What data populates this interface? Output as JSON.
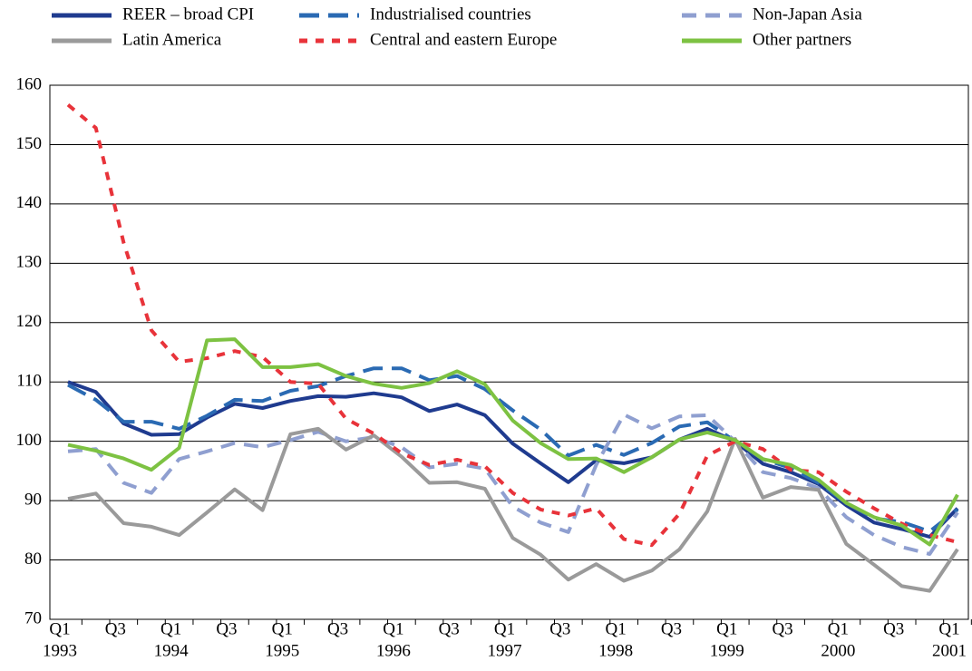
{
  "chart_data": {
    "type": "line",
    "categories": [
      "Q1",
      null,
      "Q3",
      null,
      "Q1",
      null,
      "Q3",
      null,
      "Q1",
      null,
      "Q3",
      null,
      "Q1",
      null,
      "Q3",
      null,
      "Q1",
      null,
      "Q3",
      null,
      "Q1",
      null,
      "Q3",
      null,
      "Q1",
      null,
      "Q3",
      null,
      "Q1",
      null,
      "Q3",
      null,
      "Q1"
    ],
    "category_years": [
      "1993",
      null,
      null,
      null,
      "1994",
      null,
      null,
      null,
      "1995",
      null,
      null,
      null,
      "1996",
      null,
      null,
      null,
      "1997",
      null,
      null,
      null,
      "1998",
      null,
      null,
      null,
      "1999",
      null,
      null,
      null,
      "2000",
      null,
      null,
      null,
      "2001"
    ],
    "ylim": [
      70,
      160
    ],
    "yticks": [
      70,
      80,
      90,
      100,
      110,
      120,
      130,
      140,
      150,
      160
    ],
    "grid": true,
    "series": [
      {
        "name": "REER – broad CPI",
        "color": "#1f3b8f",
        "style": "solid",
        "values": [
          110,
          108.3,
          103,
          101.1,
          101.2,
          104,
          106.3,
          105.6,
          106.8,
          107.6,
          107.5,
          108.1,
          107.4,
          105.1,
          106.2,
          104.4,
          99.6,
          96.3,
          93.1,
          96.8,
          96.3,
          97.3,
          100.3,
          102.1,
          100,
          96.2,
          94.8,
          92.8,
          89.2,
          86.3,
          85.2,
          83.9,
          88.7
        ]
      },
      {
        "name": "Industrialised countries",
        "color": "#2a6ab3",
        "style": "long",
        "values": [
          109.5,
          107,
          103.3,
          103.3,
          102.1,
          104.3,
          107,
          106.8,
          108.5,
          109.3,
          111,
          112.3,
          112.3,
          110.3,
          111,
          108.8,
          105.2,
          102,
          97.6,
          99.4,
          97.7,
          99.7,
          102.5,
          103.2,
          100,
          97,
          95.5,
          93,
          89.6,
          87,
          86.4,
          84.8,
          88.5
        ]
      },
      {
        "name": "Non-Japan Asia",
        "color": "#8f9fd0",
        "style": "dashed",
        "values": [
          98.3,
          98.7,
          93,
          91.3,
          97,
          98.3,
          99.7,
          99,
          100.2,
          101.6,
          100,
          100.7,
          99,
          95.6,
          96.2,
          95.4,
          89,
          86.3,
          84.7,
          96,
          104.5,
          102.2,
          104.2,
          104.4,
          100,
          94.8,
          93.8,
          92.1,
          87.2,
          84.2,
          82.2,
          81,
          88
        ]
      },
      {
        "name": "Latin America",
        "color": "#9a9a9a",
        "style": "solid",
        "values": [
          90.3,
          91.2,
          86.2,
          85.6,
          84.2,
          88,
          91.9,
          88.4,
          101.2,
          102.1,
          98.6,
          101,
          97.4,
          93,
          93.1,
          92,
          83.7,
          80.9,
          76.7,
          79.3,
          76.5,
          78.2,
          81.8,
          88.2,
          100.4,
          90.5,
          92.3,
          91.8,
          82.7,
          79.2,
          75.6,
          74.8,
          81.8
        ]
      },
      {
        "name": "Central and eastern Europe",
        "color": "#e8333a",
        "style": "dotted",
        "values": [
          156.7,
          152.8,
          133.5,
          118.7,
          113.4,
          114,
          115.2,
          114.2,
          110,
          109.7,
          103.8,
          101.3,
          98,
          96,
          96.9,
          95.8,
          91.3,
          88.5,
          87.5,
          88.7,
          83.5,
          82.5,
          87.8,
          97.6,
          100,
          98.7,
          95.2,
          94.8,
          91.5,
          88.7,
          86.1,
          84.2,
          83
        ]
      },
      {
        "name": "Other partners",
        "color": "#7dc242",
        "style": "solid",
        "values": [
          99.4,
          98.4,
          97.1,
          95.2,
          98.9,
          117,
          117.2,
          112.5,
          112.5,
          113,
          111,
          109.7,
          109,
          109.8,
          111.8,
          109.6,
          103.5,
          99.7,
          97,
          97.1,
          94.8,
          97.3,
          100.3,
          101.5,
          100.2,
          97,
          96,
          93.5,
          89.6,
          87.2,
          85.8,
          82.6,
          91
        ]
      }
    ]
  }
}
